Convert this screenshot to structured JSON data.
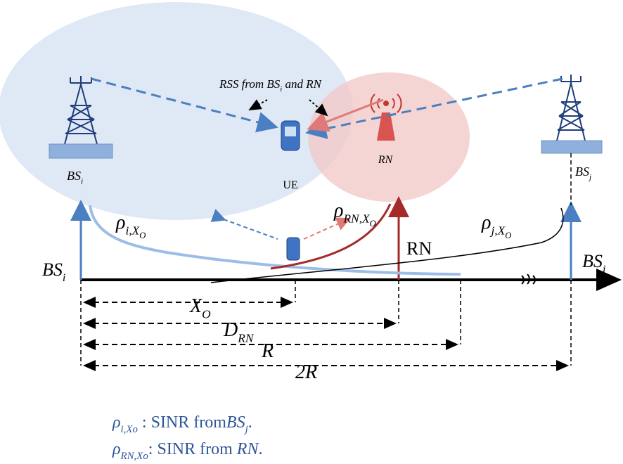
{
  "top": {
    "rss_note": {
      "base": "RSS from BS",
      "sub": "i",
      "rest": " and RN"
    },
    "bs_i": {
      "base": "BS",
      "sub": "i"
    },
    "ue": "UE",
    "rn": "RN",
    "bs_j": {
      "base": "BS",
      "sub": "j"
    }
  },
  "axis": {
    "rho_i": {
      "base": "ρ",
      "sub": "i,X",
      "subsub": "O"
    },
    "rho_rn": {
      "base": "ρ",
      "sub": "RN,X",
      "subsub": "O"
    },
    "rho_j": {
      "base": "ρ",
      "sub": "j,X",
      "subsub": "O"
    },
    "rn": "RN",
    "bs_i": {
      "base": "BS",
      "sub": "i"
    },
    "bs_j": {
      "base": "BS",
      "sub": "j"
    }
  },
  "distances": [
    {
      "base": "X",
      "sub": "O"
    },
    {
      "base": "D",
      "sub": "RN"
    },
    {
      "base": "R"
    },
    {
      "base": "2R"
    }
  ],
  "legend": [
    {
      "base": "ρ",
      "sub": "i,Xo",
      "text": " : SINR from",
      "term": "BS",
      "term_sub": "j",
      "end": "."
    },
    {
      "base": "ρ",
      "sub": "RN,Xo",
      "text": ": SINR from ",
      "term": "RN",
      "end": "."
    }
  ]
}
